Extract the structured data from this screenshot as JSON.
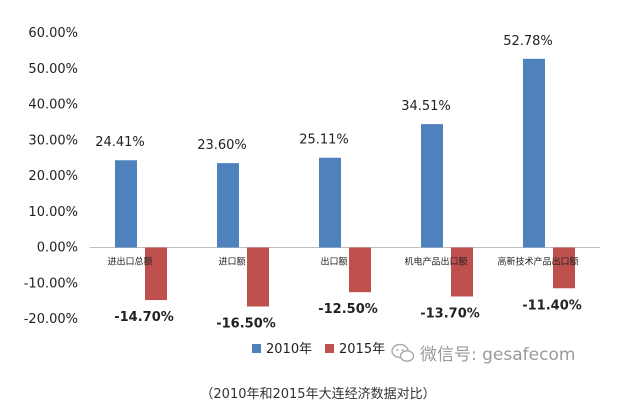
{
  "chart_data": {
    "type": "bar",
    "categories": [
      "进出口总额",
      "进口额",
      "出口额",
      "机电产品出口额",
      "高新技术产品出口额"
    ],
    "series": [
      {
        "name": "2010年",
        "values": [
          24.41,
          23.6,
          25.11,
          34.51,
          52.78
        ],
        "color": "#4F81BD",
        "labels": [
          "24.41%",
          "23.60%",
          "25.11%",
          "34.51%",
          "52.78%"
        ]
      },
      {
        "name": "2015年",
        "values": [
          -14.7,
          -16.5,
          -12.5,
          -13.7,
          -11.4
        ],
        "color": "#C0504D",
        "labels": [
          "-14.70%",
          "-16.50%",
          "-12.50%",
          "-13.70%",
          "-11.40%"
        ]
      }
    ],
    "ylim": [
      -20,
      60
    ],
    "yticks": [
      60,
      50,
      40,
      30,
      20,
      10,
      0,
      -10,
      -20
    ],
    "ytick_labels": [
      "60.00%",
      "50.00%",
      "40.00%",
      "30.00%",
      "20.00%",
      "10.00%",
      "0.00%",
      "-10.00%",
      "-20.00%"
    ],
    "legend_position": "bottom",
    "grid": false
  },
  "watermark": {
    "text": "微信号: gesafecom",
    "icon": "wechat-icon"
  },
  "caption": "（2010年和2015年大连经济数据对比）"
}
